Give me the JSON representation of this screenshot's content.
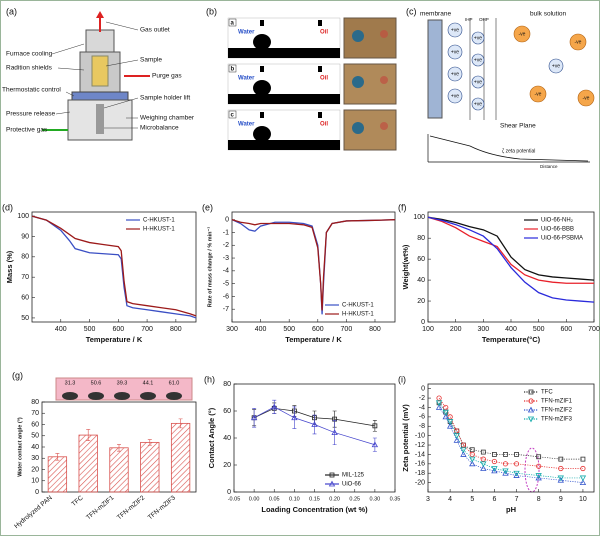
{
  "figure_a": {
    "panel": "(a)",
    "labels": [
      "Gas outlet",
      "Furnace cooling",
      "Sample",
      "Radition shields",
      "Purge gas",
      "Thermostatic control",
      "Sample holder lift",
      "Pressure release",
      "Weighing chamber",
      "Microbalance",
      "Protective gas"
    ]
  },
  "figure_b": {
    "panel": "(b)",
    "rows": [
      {
        "tag": "a",
        "water": "Water",
        "oil": "Oil"
      },
      {
        "tag": "b",
        "water": "Water",
        "oil": "Oil"
      },
      {
        "tag": "c",
        "water": "Water",
        "oil": "Oil"
      }
    ]
  },
  "figure_c": {
    "panel": "(c)",
    "membrane": "membrane",
    "bulk": "bulk solution",
    "positive": "+ve",
    "negative": "-ve",
    "ihp": "IHP",
    "ohp": "OHP",
    "shear": "Shear Plane",
    "zeta": "ζ zeta potential",
    "distance": "Distance"
  },
  "chart_data": [
    {
      "type": "line",
      "panel": "(d)",
      "xlabel": "Temperature / K",
      "ylabel": "Mass (%)",
      "xlim": [
        300,
        870
      ],
      "xticks": [
        400,
        500,
        600,
        700,
        800
      ],
      "ylim": [
        48,
        102
      ],
      "yticks": [
        50,
        60,
        70,
        80,
        90,
        100
      ],
      "legend": "upper right",
      "x": [
        300,
        350,
        400,
        430,
        450,
        500,
        550,
        600,
        610,
        620,
        630,
        650,
        700,
        750,
        800,
        850,
        870
      ],
      "series": [
        {
          "name": "C-HKUST-1",
          "color": "#3a4fc4",
          "values": [
            100,
            98,
            93,
            88,
            84,
            82,
            81.5,
            81,
            79,
            65,
            56,
            55,
            54,
            53,
            52,
            51,
            50
          ]
        },
        {
          "name": "H-HKUST-1",
          "color": "#9c1a1a",
          "values": [
            100,
            98,
            94,
            91,
            89,
            87,
            86,
            85,
            83,
            68,
            58,
            57,
            56,
            55,
            54,
            52,
            51
          ]
        }
      ]
    },
    {
      "type": "line",
      "panel": "(e)",
      "xlabel": "Temperature / K",
      "ylabel": "Rate of mass change / % min⁻¹",
      "xlim": [
        300,
        870
      ],
      "xticks": [
        300,
        400,
        500,
        600,
        700,
        800
      ],
      "ylim": [
        -8,
        0.6
      ],
      "yticks": [
        0,
        -1,
        -2,
        -3,
        -4,
        -5,
        -6,
        -7
      ],
      "legend": "lower right",
      "x": [
        300,
        330,
        360,
        380,
        400,
        450,
        500,
        550,
        580,
        600,
        610,
        615,
        620,
        630,
        650,
        700,
        800,
        870
      ],
      "series": [
        {
          "name": "C-HKUST-1",
          "color": "#3a4fc4",
          "values": [
            0,
            -0.3,
            -0.8,
            -0.9,
            -0.5,
            -0.2,
            -0.2,
            -0.3,
            -0.5,
            -2,
            -5,
            -7.4,
            -5,
            -1,
            -0.3,
            -0.1,
            -0.05,
            0
          ]
        },
        {
          "name": "H-HKUST-1",
          "color": "#9c1a1a",
          "values": [
            0,
            -0.2,
            -0.3,
            -0.4,
            -0.3,
            -0.3,
            -0.3,
            -0.4,
            -0.6,
            -2.2,
            -5,
            -7.1,
            -4.5,
            -1,
            -0.3,
            -0.1,
            -0.05,
            0
          ]
        }
      ]
    },
    {
      "type": "line",
      "panel": "(f)",
      "xlabel": "Temperature(°C)",
      "ylabel": "Weight(wt%)",
      "xlim": [
        100,
        700
      ],
      "xticks": [
        100,
        200,
        300,
        400,
        500,
        600,
        700
      ],
      "ylim": [
        0,
        105
      ],
      "yticks": [
        0,
        20,
        40,
        60,
        80,
        100
      ],
      "legend": "upper right",
      "x": [
        100,
        150,
        200,
        250,
        300,
        350,
        400,
        450,
        500,
        550,
        600,
        650,
        700
      ],
      "series": [
        {
          "name": "UiO-66-NH₂",
          "color": "#111111",
          "values": [
            100,
            98,
            95,
            91,
            88,
            82,
            62,
            50,
            45,
            43,
            42,
            41,
            40
          ]
        },
        {
          "name": "UiO-66-BBB",
          "color": "#e8202a",
          "values": [
            100,
            96,
            90,
            82,
            77,
            72,
            55,
            45,
            40,
            38,
            37,
            37,
            37
          ]
        },
        {
          "name": "UiO-66-PSBMA",
          "color": "#2a2adb",
          "values": [
            100,
            97,
            93,
            88,
            82,
            70,
            52,
            38,
            28,
            23,
            21,
            20,
            19
          ]
        }
      ]
    },
    {
      "type": "bar",
      "panel": "(g)",
      "ylabel": "Water contact angle (°)",
      "ylim": [
        0,
        80
      ],
      "yticks": [
        0,
        10,
        20,
        30,
        40,
        50,
        60,
        70,
        80
      ],
      "color": "#d9534f",
      "categories": [
        "Hydrolyzed PAN",
        "TFC",
        "TFN-mZIF1",
        "TFN-mZIF2",
        "TFN-mZIF3"
      ],
      "values": [
        31.3,
        50.6,
        39.3,
        44.1,
        61.0
      ],
      "value_labels": [
        "31.3",
        "50.6",
        "39.3",
        "44.1",
        "61.0"
      ],
      "errors": [
        3,
        5,
        3,
        2.5,
        4
      ]
    },
    {
      "type": "line",
      "panel": "(h)",
      "xlabel": "Loading Concentration (wt %)",
      "ylabel": "Contact Angle (°)",
      "xlim": [
        -0.05,
        0.35
      ],
      "xticks": [
        {
          "value": -0.05,
          "label": "-0.05"
        },
        {
          "value": 0,
          "label": "0.00"
        },
        {
          "value": 0.05,
          "label": "0.05"
        },
        {
          "value": 0.1,
          "label": "0.10"
        },
        {
          "value": 0.15,
          "label": "0.15"
        },
        {
          "value": 0.2,
          "label": "0.20"
        },
        {
          "value": 0.25,
          "label": "0.25"
        },
        {
          "value": 0.3,
          "label": "0.30"
        },
        {
          "value": 0.35,
          "label": "0.35"
        }
      ],
      "ylim": [
        0,
        80
      ],
      "yticks": [
        0,
        20,
        40,
        60,
        80
      ],
      "legend": "lower right",
      "x": [
        0,
        0.05,
        0.1,
        0.15,
        0.2,
        0.3
      ],
      "series": [
        {
          "name": "MIL-125",
          "color": "#222222",
          "marker": "square",
          "values": [
            55,
            62,
            60,
            55,
            54,
            49
          ],
          "errors": [
            6,
            4,
            4,
            5,
            6,
            4
          ]
        },
        {
          "name": "UiO-66",
          "color": "#4444cc",
          "marker": "triangle",
          "values": [
            55,
            63,
            55,
            50,
            44,
            35
          ],
          "errors": [
            7,
            5,
            8,
            7,
            9,
            5
          ]
        }
      ]
    },
    {
      "type": "line",
      "panel": "(i)",
      "xlabel": "pH",
      "ylabel": "Zeta potential (mV)",
      "xlim": [
        3,
        10.5
      ],
      "xticks": [
        3,
        4,
        5,
        6,
        7,
        8,
        9,
        10
      ],
      "ylim": [
        -22,
        1
      ],
      "yticks": [
        0,
        -2,
        -4,
        -6,
        -8,
        -10,
        -12,
        -14,
        -16,
        -18,
        -20
      ],
      "legend": "upper right",
      "line_style": "dotted",
      "x": [
        3.5,
        3.8,
        4,
        4.3,
        4.6,
        5,
        5.5,
        6,
        6.5,
        7,
        8,
        9,
        10
      ],
      "series": [
        {
          "name": "TFC",
          "color": "#333333",
          "marker": "square",
          "values": [
            -3,
            -5,
            -7,
            -9,
            -12,
            -13,
            -13.5,
            -14,
            -14,
            -14,
            -14.5,
            -15,
            -15
          ]
        },
        {
          "name": "TFN-mZIF1",
          "color": "#e53030",
          "marker": "circle",
          "values": [
            -2,
            -4,
            -6,
            -9,
            -12,
            -14,
            -15,
            -15.5,
            -16,
            -16,
            -16.5,
            -17,
            -17
          ]
        },
        {
          "name": "TFN-mZIF2",
          "color": "#3355cc",
          "marker": "triangle",
          "values": [
            -4,
            -6,
            -8,
            -11,
            -14,
            -16,
            -17,
            -17.5,
            -18,
            -18.5,
            -19,
            -19.5,
            -20
          ]
        },
        {
          "name": "TFN-mZIF3",
          "color": "#11aaaa",
          "marker": "triangle-down",
          "values": [
            -3,
            -5,
            -7,
            -10,
            -13,
            -15,
            -16,
            -17,
            -17.5,
            -18,
            -18.5,
            -19,
            -19
          ]
        }
      ]
    }
  ]
}
